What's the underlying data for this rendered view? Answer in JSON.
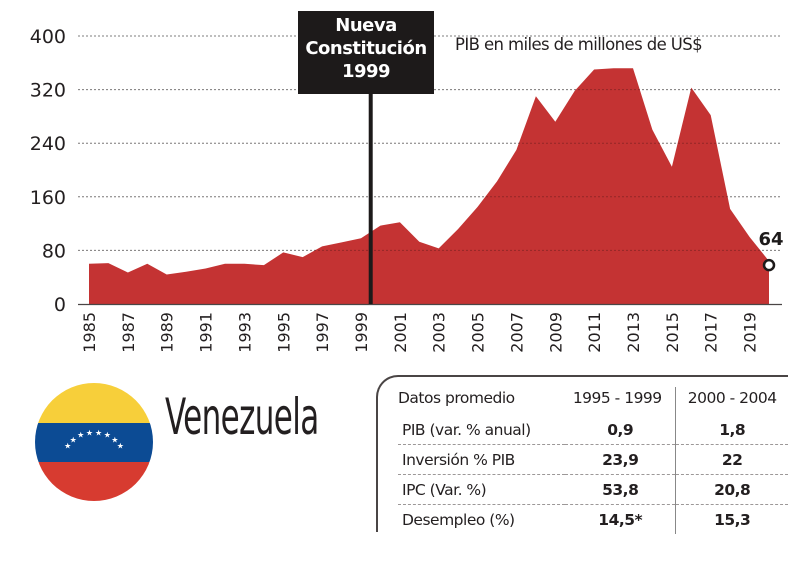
{
  "chart_data": {
    "type": "area",
    "title": "PIB en miles de millones de US$",
    "xlabel": "",
    "ylabel": "",
    "ylim": [
      0,
      400
    ],
    "xlim": [
      1985,
      2020
    ],
    "yticks": [
      0,
      80,
      160,
      240,
      320,
      400
    ],
    "xticks": [
      1985,
      1987,
      1989,
      1991,
      1993,
      1995,
      1997,
      1999,
      2001,
      2003,
      2005,
      2007,
      2009,
      2011,
      2013,
      2015,
      2017,
      2019
    ],
    "grid": true,
    "color": "#c43333",
    "x": [
      1985,
      1986,
      1987,
      1988,
      1989,
      1990,
      1991,
      1992,
      1993,
      1994,
      1995,
      1996,
      1997,
      1998,
      1999,
      2000,
      2001,
      2002,
      2003,
      2004,
      2005,
      2006,
      2007,
      2008,
      2009,
      2010,
      2011,
      2012,
      2013,
      2014,
      2015,
      2016,
      2017,
      2018,
      2019,
      2020
    ],
    "series": [
      {
        "name": "PIB (miles de millones de US$)",
        "values": [
          60,
          61,
          47,
          60,
          44,
          48,
          53,
          60,
          60,
          58,
          77,
          70,
          86,
          92,
          98,
          117,
          122,
          93,
          83,
          112,
          145,
          183,
          230,
          310,
          272,
          318,
          350,
          352,
          352,
          260,
          205,
          323,
          282,
          142,
          100,
          64
        ]
      }
    ],
    "annotations": [
      {
        "type": "vertical-line",
        "x": 1999.5,
        "lines": [
          "Nueva",
          "Constitución",
          "1999"
        ]
      },
      {
        "type": "end-label",
        "x": 2020,
        "y": 64,
        "text": "64"
      }
    ]
  },
  "header": {
    "chart_title": "PIB en miles de millones de US$",
    "annotation_lines": [
      "Nueva",
      "Constitución",
      "1999"
    ],
    "end_value_label": "64"
  },
  "country": {
    "name": "Venezuela",
    "flag_colors": {
      "yellow": "#f7cf3a",
      "blue": "#0c4b94",
      "red": "#d73b30",
      "stars": "#ffffff"
    },
    "star_count": 8
  },
  "table": {
    "header": [
      "Datos promedio",
      "1995 - 1999",
      "2000 - 2004"
    ],
    "rows": [
      {
        "label": "PIB (var. % anual)",
        "v1": "0,9",
        "v2": "1,8"
      },
      {
        "label": "Inversión % PIB",
        "v1": "23,9",
        "v2": "22"
      },
      {
        "label": "IPC (Var. %)",
        "v1": "53,8",
        "v2": "20,8"
      },
      {
        "label": "Desempleo (%)",
        "v1": "14,5*",
        "v2": "15,3"
      }
    ]
  }
}
